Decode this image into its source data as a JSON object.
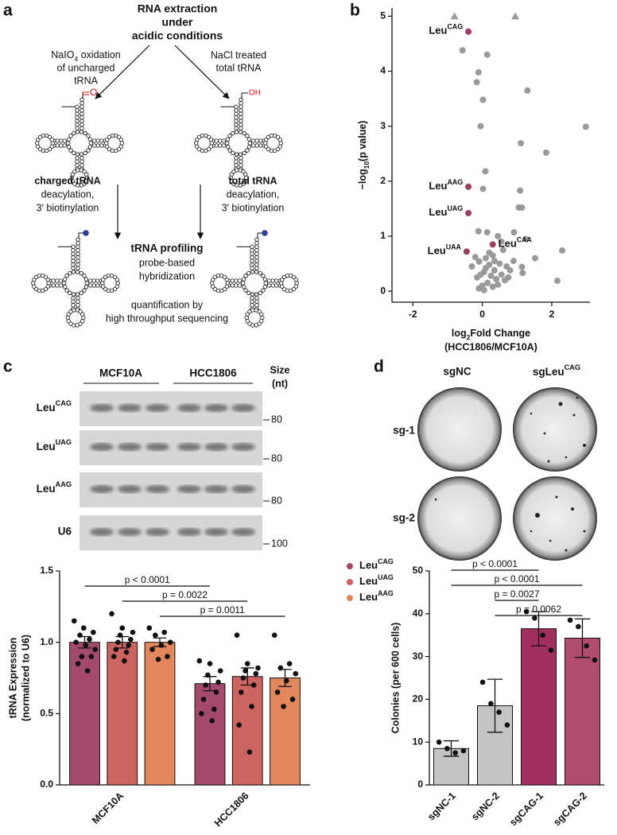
{
  "panel_labels": [
    "a",
    "b",
    "c",
    "d"
  ],
  "diagram": {
    "title": [
      "RNA extraction",
      "under",
      "acidic conditions"
    ],
    "left_step": [
      [
        {
          "t": "NaIO"
        },
        {
          "t": "4",
          "sub": true
        },
        {
          "t": " oxidation"
        }
      ],
      "of uncharged",
      "tRNA"
    ],
    "right_step": [
      "NaCl treated",
      "total tRNA"
    ],
    "left_mod": "O",
    "right_mod": "OH",
    "charged": {
      "title": "charged tRNA",
      "lines": [
        "deacylation,",
        "3′ biotinylation"
      ]
    },
    "total": {
      "title": "total tRNA",
      "lines": [
        "deacylation,",
        "3′ biotinylation"
      ]
    },
    "profiling": {
      "title": "tRNA profiling",
      "lines": [
        "probe-based",
        "hybridization"
      ]
    },
    "quant": [
      "quantification by",
      "high throughput sequencing"
    ]
  },
  "blots": {
    "groups": [
      "MCF10A",
      "HCC1806"
    ],
    "size_label": [
      "Size",
      "(nt)"
    ],
    "rows": [
      {
        "label": [
          {
            "t": "Leu"
          },
          {
            "t": "CAG",
            "sup": true
          }
        ],
        "marker": 80
      },
      {
        "label": [
          {
            "t": "Leu"
          },
          {
            "t": "UAG",
            "sup": true
          }
        ],
        "marker": 80
      },
      {
        "label": [
          {
            "t": "Leu"
          },
          {
            "t": "AAG",
            "sup": true
          }
        ],
        "marker": 80
      },
      {
        "label": "U6",
        "marker": 100
      }
    ]
  },
  "images": {
    "columns": [
      "sgNC",
      [
        {
          "t": "sgLeu"
        },
        {
          "t": "CAG",
          "sup": true
        }
      ]
    ],
    "rows": [
      "sg-1",
      "sg-2"
    ]
  },
  "chart_data": [
    {
      "type": "scatter",
      "xlabel": [
        [
          {
            "t": "log"
          },
          {
            "t": "2",
            "sub": true
          },
          {
            "t": "Fold Change"
          }
        ],
        "(HCC1806/MCF10A)"
      ],
      "ylabel": [
        {
          "t": "−log"
        },
        {
          "t": "10",
          "sub": true
        },
        {
          "t": "(p value)"
        }
      ],
      "xlim": [
        -2.6,
        3.1
      ],
      "ylim": [
        -0.2,
        5.15
      ],
      "xticks": [
        -2,
        0,
        2
      ],
      "yticks": [
        0,
        1,
        2,
        3,
        4,
        5
      ],
      "series": [
        {
          "color": "#9a9a9a",
          "marker": "circle",
          "x": [
            -0.57,
            0.14,
            -0.11,
            -0.16,
            0.02,
            1.3,
            2.98,
            -0.05,
            1.11,
            1.84,
            0.09,
            0.02,
            1.09,
            1.14,
            1.05,
            -0.11,
            0.91,
            1.25,
            2.3,
            1.52,
            2.16,
            -0.09,
            0.14,
            1.16,
            1.14,
            0.45,
            0.55,
            0.6,
            0.3,
            0.35,
            0.2,
            0.1,
            0.05,
            -0.05,
            -0.15,
            -0.2,
            0.25,
            0.4,
            0.5,
            0.7,
            0.8,
            0.15,
            0.0,
            -0.1,
            0.3,
            0.45,
            0.65,
            0.1,
            0.2,
            0.35,
            0.55,
            -0.3,
            0.9,
            0.75,
            0.05
          ],
          "y": [
            4.38,
            4.3,
            3.98,
            3.8,
            3.48,
            3.65,
            2.99,
            3.0,
            2.69,
            2.52,
            2.18,
            1.86,
            1.83,
            1.52,
            1.52,
            1.09,
            1.07,
            0.95,
            0.74,
            0.6,
            0.19,
            0.54,
            1.07,
            0.33,
            0.44,
            1.0,
            0.9,
            0.75,
            0.65,
            0.55,
            0.48,
            0.42,
            0.35,
            0.3,
            0.25,
            0.62,
            0.28,
            0.22,
            0.5,
            0.45,
            0.38,
            0.15,
            0.1,
            0.05,
            0.08,
            0.12,
            0.2,
            0.6,
            0.7,
            0.38,
            0.3,
            0.45,
            0.55,
            0.25,
            0.02
          ]
        },
        {
          "color": "#9b3f66",
          "marker": "circle",
          "x": [
            -0.4,
            -0.4,
            -0.4,
            -0.45,
            0.3
          ],
          "y": [
            4.72,
            1.9,
            1.42,
            0.72,
            0.85
          ],
          "point_labels": [
            [
              {
                "t": "Leu"
              },
              {
                "t": "CAG",
                "sup": true
              }
            ],
            [
              {
                "t": "Leu"
              },
              {
                "t": "AAG",
                "sup": true
              }
            ],
            [
              {
                "t": "Leu"
              },
              {
                "t": "UAG",
                "sup": true
              }
            ],
            [
              {
                "t": "Leu"
              },
              {
                "t": "UAA",
                "sup": true
              }
            ],
            [
              {
                "t": "Leu"
              },
              {
                "t": "CAA",
                "sup": true
              }
            ]
          ]
        },
        {
          "color": "#9a9a9a",
          "marker": "triangle",
          "x": [
            -0.8,
            0.95
          ],
          "y": [
            5,
            5
          ]
        }
      ]
    },
    {
      "type": "bar",
      "ylabel": [
        "tRNA Expression",
        "(normalized to U6)"
      ],
      "categories": [
        "MCF10A",
        "HCC1806"
      ],
      "ylim": [
        0,
        1.5
      ],
      "yticks": [
        {
          "value": 0,
          "label": "0.0"
        },
        0.5,
        {
          "value": 1,
          "label": "1.0"
        },
        1.5
      ],
      "legend": "right",
      "series": [
        {
          "name": [
            {
              "t": "Leu"
            },
            {
              "t": "CAG",
              "sup": true
            }
          ],
          "color": "#a34a6e",
          "values": [
            1.0,
            0.71
          ],
          "errors": [
            0.04,
            0.05
          ],
          "points": [
            [
              1.15,
              1.1,
              1.07,
              1.05,
              1.02,
              1.0,
              0.98,
              0.95,
              0.9,
              0.9,
              0.85,
              0.8
            ],
            [
              0.87,
              0.85,
              0.8,
              0.77,
              0.72,
              0.7,
              0.65,
              0.6,
              0.53,
              0.5,
              0.45
            ]
          ]
        },
        {
          "name": [
            {
              "t": "Leu"
            },
            {
              "t": "UAG",
              "sup": true
            }
          ],
          "color": "#cc6462",
          "values": [
            1.0,
            0.76
          ],
          "errors": [
            0.04,
            0.06
          ],
          "points": [
            [
              1.2,
              1.1,
              1.07,
              1.05,
              1.02,
              1.0,
              0.98,
              0.95,
              0.93,
              0.9,
              0.87
            ],
            [
              1.05,
              0.85,
              0.82,
              0.8,
              0.78,
              0.75,
              0.7,
              0.65,
              0.55,
              0.42,
              0.23
            ]
          ]
        },
        {
          "name": [
            {
              "t": "Leu"
            },
            {
              "t": "AAG",
              "sup": true
            }
          ],
          "color": "#e3875d",
          "values": [
            1.0,
            0.75
          ],
          "errors": [
            0.03,
            0.06
          ],
          "points": [
            [
              1.1,
              1.07,
              1.05,
              1.0,
              0.98,
              0.95,
              0.9,
              0.88
            ],
            [
              1.05,
              0.85,
              0.82,
              0.78,
              0.73,
              0.65,
              0.6,
              0.55
            ]
          ]
        }
      ],
      "comparisons": [
        {
          "text": "p < 0.0001",
          "series": 0
        },
        {
          "text": "p = 0.0022",
          "series": 1
        },
        {
          "text": "p = 0.0011",
          "series": 2
        }
      ]
    },
    {
      "type": "bar",
      "ylabel": [
        "Colonies (per 600 cells)"
      ],
      "categories": [
        "sgNC-1",
        "sgNC-2",
        "sgCAG-1",
        "sgCAG-2"
      ],
      "ylim": [
        0,
        50
      ],
      "yticks": [
        0,
        10,
        20,
        30,
        40,
        50
      ],
      "values": [
        8.5,
        18.5,
        36.5,
        34.3
      ],
      "errors": [
        1.8,
        6.2,
        4,
        4.5
      ],
      "colors": [
        "#c4c4c4",
        "#c4c4c4",
        "#a2305f",
        "#b04d70"
      ],
      "points": [
        [
          10,
          8.5,
          7.5,
          8
        ],
        [
          24,
          19,
          17,
          14
        ],
        [
          40.5,
          39,
          35,
          31.5
        ],
        [
          38.5,
          37,
          32.5,
          29.2
        ]
      ],
      "comparisons": [
        {
          "text": "p < 0.0001",
          "from": 0,
          "to": 2
        },
        {
          "text": "p < 0.0001",
          "from": 0,
          "to": 3
        },
        {
          "text": "p = 0.0027",
          "from": 1,
          "to": 2
        },
        {
          "text": "p = 0.0062",
          "from": 1,
          "to": 3
        }
      ]
    }
  ]
}
